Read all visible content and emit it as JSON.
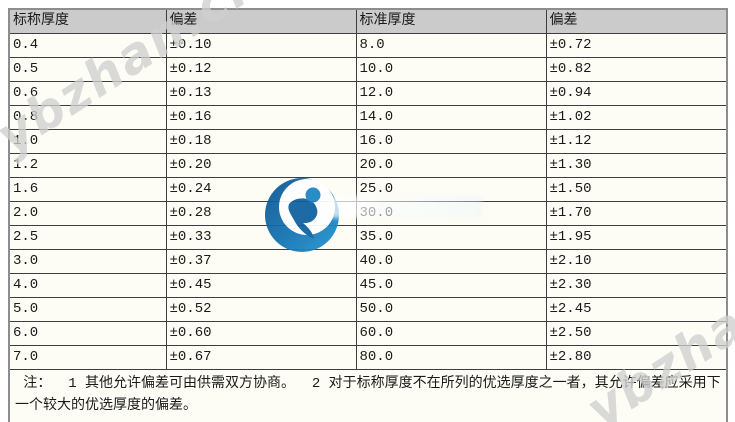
{
  "table": {
    "headers": [
      "标称厚度",
      "偏差",
      "标准厚度",
      "偏差"
    ],
    "rows": [
      [
        "0.4",
        "±0.10",
        "8.0",
        "±0.72"
      ],
      [
        "0.5",
        "±0.12",
        "10.0",
        "±0.82"
      ],
      [
        "0.6",
        "±0.13",
        "12.0",
        "±0.94"
      ],
      [
        "0.8",
        "±0.16",
        "14.0",
        "±1.02"
      ],
      [
        "1.0",
        "±0.18",
        "16.0",
        "±1.12"
      ],
      [
        "1.2",
        "±0.20",
        "20.0",
        "±1.30"
      ],
      [
        "1.6",
        "±0.24",
        "25.0",
        "±1.50"
      ],
      [
        "2.0",
        "±0.28",
        "30.0",
        "±1.70"
      ],
      [
        "2.5",
        "±0.33",
        "35.0",
        "±1.95"
      ],
      [
        "3.0",
        "±0.37",
        "40.0",
        "±2.10"
      ],
      [
        "4.0",
        "±0.45",
        "45.0",
        "±2.30"
      ],
      [
        "5.0",
        "±0.52",
        "50.0",
        "±2.45"
      ],
      [
        "6.0",
        "±0.60",
        "60.0",
        "±2.50"
      ],
      [
        "7.0",
        "±0.67",
        "80.0",
        "±2.80"
      ]
    ],
    "note": " 注：  1 其他允许偏差可由供需双方协商。  2 对于标称厚度不在所列的优选厚度之一者，其允许偏差应采用下一个较大的优选厚度的偏差。"
  },
  "watermarks": {
    "diagonal_text": "ybzhan.cn",
    "logo_icon": "ybzhan-logo"
  },
  "colors": {
    "header_bg": "#cbcbcb",
    "cell_bg": "#fdfdf5",
    "border_inner": "#3e3e42",
    "border_outer": "#8d8d8d",
    "text": "#1a1a1c",
    "watermark_gray": "#cecece",
    "logo_blue_dark": "#0b5290",
    "logo_blue_light": "#2196d4"
  }
}
